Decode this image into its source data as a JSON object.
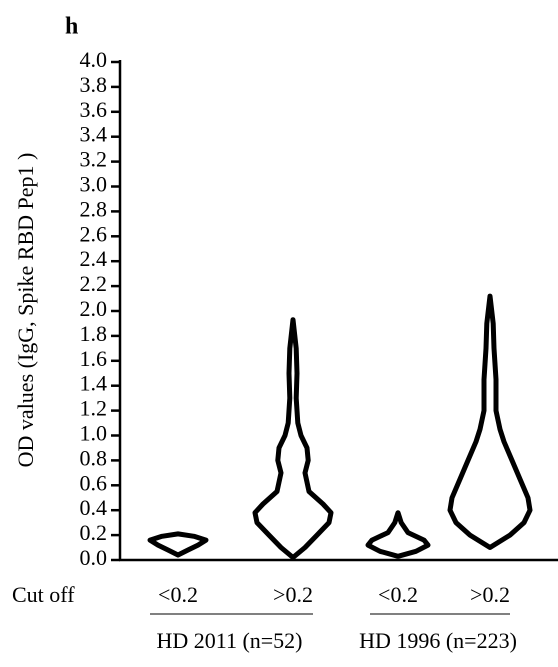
{
  "chart_data": {
    "type": "violin",
    "title": "h",
    "ylabel": "OD values (IgG, Spike RBD Pep1 )",
    "xlabel": "Cut off",
    "categories": [
      "<0.2",
      ">0.2",
      "<0.2",
      ">0.2"
    ],
    "groups": [
      "HD 2011 (n=52)",
      "HD 1996 (n=223)"
    ],
    "color": "#000000",
    "ylim": [
      0,
      4
    ],
    "yticks": [
      {
        "value": 0,
        "label": "0.0"
      },
      0.2,
      0.4,
      0.6,
      0.8,
      {
        "value": 1,
        "label": "1.0"
      },
      1.2,
      1.4,
      1.6,
      1.8,
      {
        "value": 2,
        "label": "2.0"
      },
      2.2,
      2.4,
      2.6,
      2.8,
      {
        "value": 3,
        "label": "3.0"
      },
      3.2,
      3.4,
      3.6,
      3.8,
      {
        "value": 4,
        "label": "4.0"
      }
    ],
    "violins": [
      {
        "y": [
          0.04,
          0.08,
          0.12,
          0.16,
          0.19,
          0.21
        ],
        "density": [
          0,
          0.25,
          0.5,
          0.7,
          0.4,
          0
        ]
      },
      {
        "y": [
          0.02,
          0.1,
          0.2,
          0.3,
          0.38,
          0.45,
          0.55,
          0.7,
          0.8,
          0.9,
          1.0,
          1.1,
          1.3,
          1.5,
          1.7,
          1.93
        ],
        "density": [
          0,
          0.3,
          0.6,
          0.9,
          0.95,
          0.75,
          0.4,
          0.3,
          0.38,
          0.35,
          0.2,
          0.12,
          0.08,
          0.1,
          0.08,
          0
        ]
      },
      {
        "y": [
          0.03,
          0.07,
          0.12,
          0.16,
          0.22,
          0.3,
          0.38
        ],
        "density": [
          0,
          0.45,
          0.75,
          0.65,
          0.25,
          0.08,
          0
        ]
      },
      {
        "y": [
          0.1,
          0.2,
          0.3,
          0.4,
          0.5,
          0.65,
          0.8,
          0.95,
          1.05,
          1.2,
          1.45,
          1.7,
          1.9,
          2.12
        ],
        "density": [
          0,
          0.5,
          0.85,
          1.0,
          0.95,
          0.75,
          0.55,
          0.35,
          0.25,
          0.15,
          0.15,
          0.1,
          0.08,
          0
        ]
      }
    ]
  }
}
